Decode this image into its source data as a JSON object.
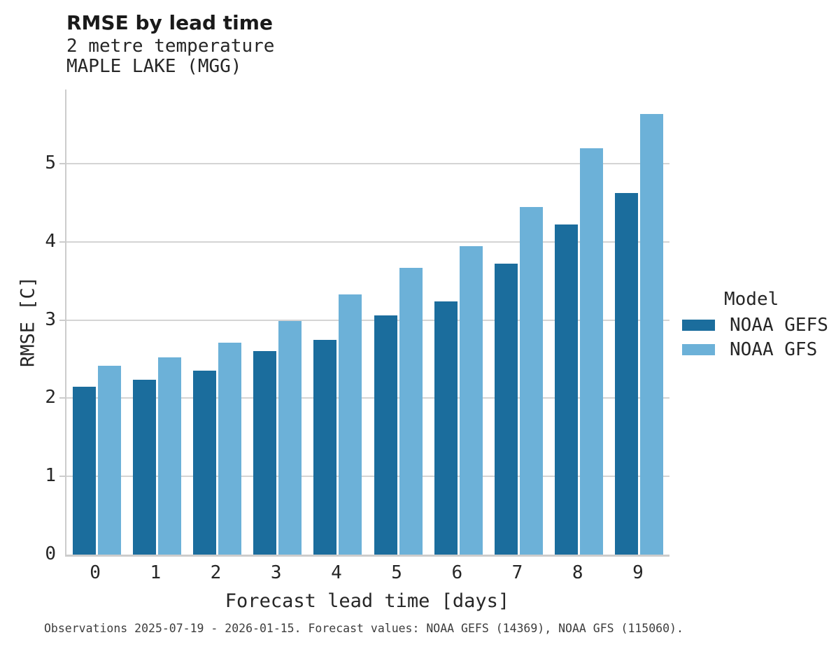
{
  "header": {
    "title": "RMSE by lead time",
    "subtitle_line1": "2 metre temperature",
    "subtitle_line2": "MAPLE LAKE (MGG)"
  },
  "chart_data": {
    "type": "bar",
    "categories": [
      "0",
      "1",
      "2",
      "3",
      "4",
      "5",
      "6",
      "7",
      "8",
      "9"
    ],
    "series": [
      {
        "name": "NOAA GEFS",
        "color": "#1b6d9d",
        "values": [
          2.15,
          2.24,
          2.35,
          2.6,
          2.75,
          3.06,
          3.24,
          3.72,
          4.22,
          4.63
        ]
      },
      {
        "name": "NOAA GFS",
        "color": "#6cb1d8",
        "values": [
          2.42,
          2.52,
          2.71,
          2.99,
          3.33,
          3.67,
          3.95,
          4.45,
          5.2,
          5.64
        ]
      }
    ],
    "title": "RMSE by lead time",
    "xlabel": "Forecast lead time [days]",
    "ylabel": "RMSE [C]",
    "ylim": [
      0,
      5.95
    ],
    "yticks": [
      0,
      1,
      2,
      3,
      4,
      5
    ],
    "grid": "horizontal",
    "legend_title": "Model",
    "legend_position": "right"
  },
  "footer": {
    "caption": "Observations 2025-07-19 - 2026-01-15. Forecast values: NOAA GEFS (14369), NOAA GFS (115060)."
  },
  "colors": {
    "axis_spine": "#cccccc",
    "gridline": "#d4d4d4",
    "text": "#262626",
    "title_text": "#1a1a1a"
  }
}
